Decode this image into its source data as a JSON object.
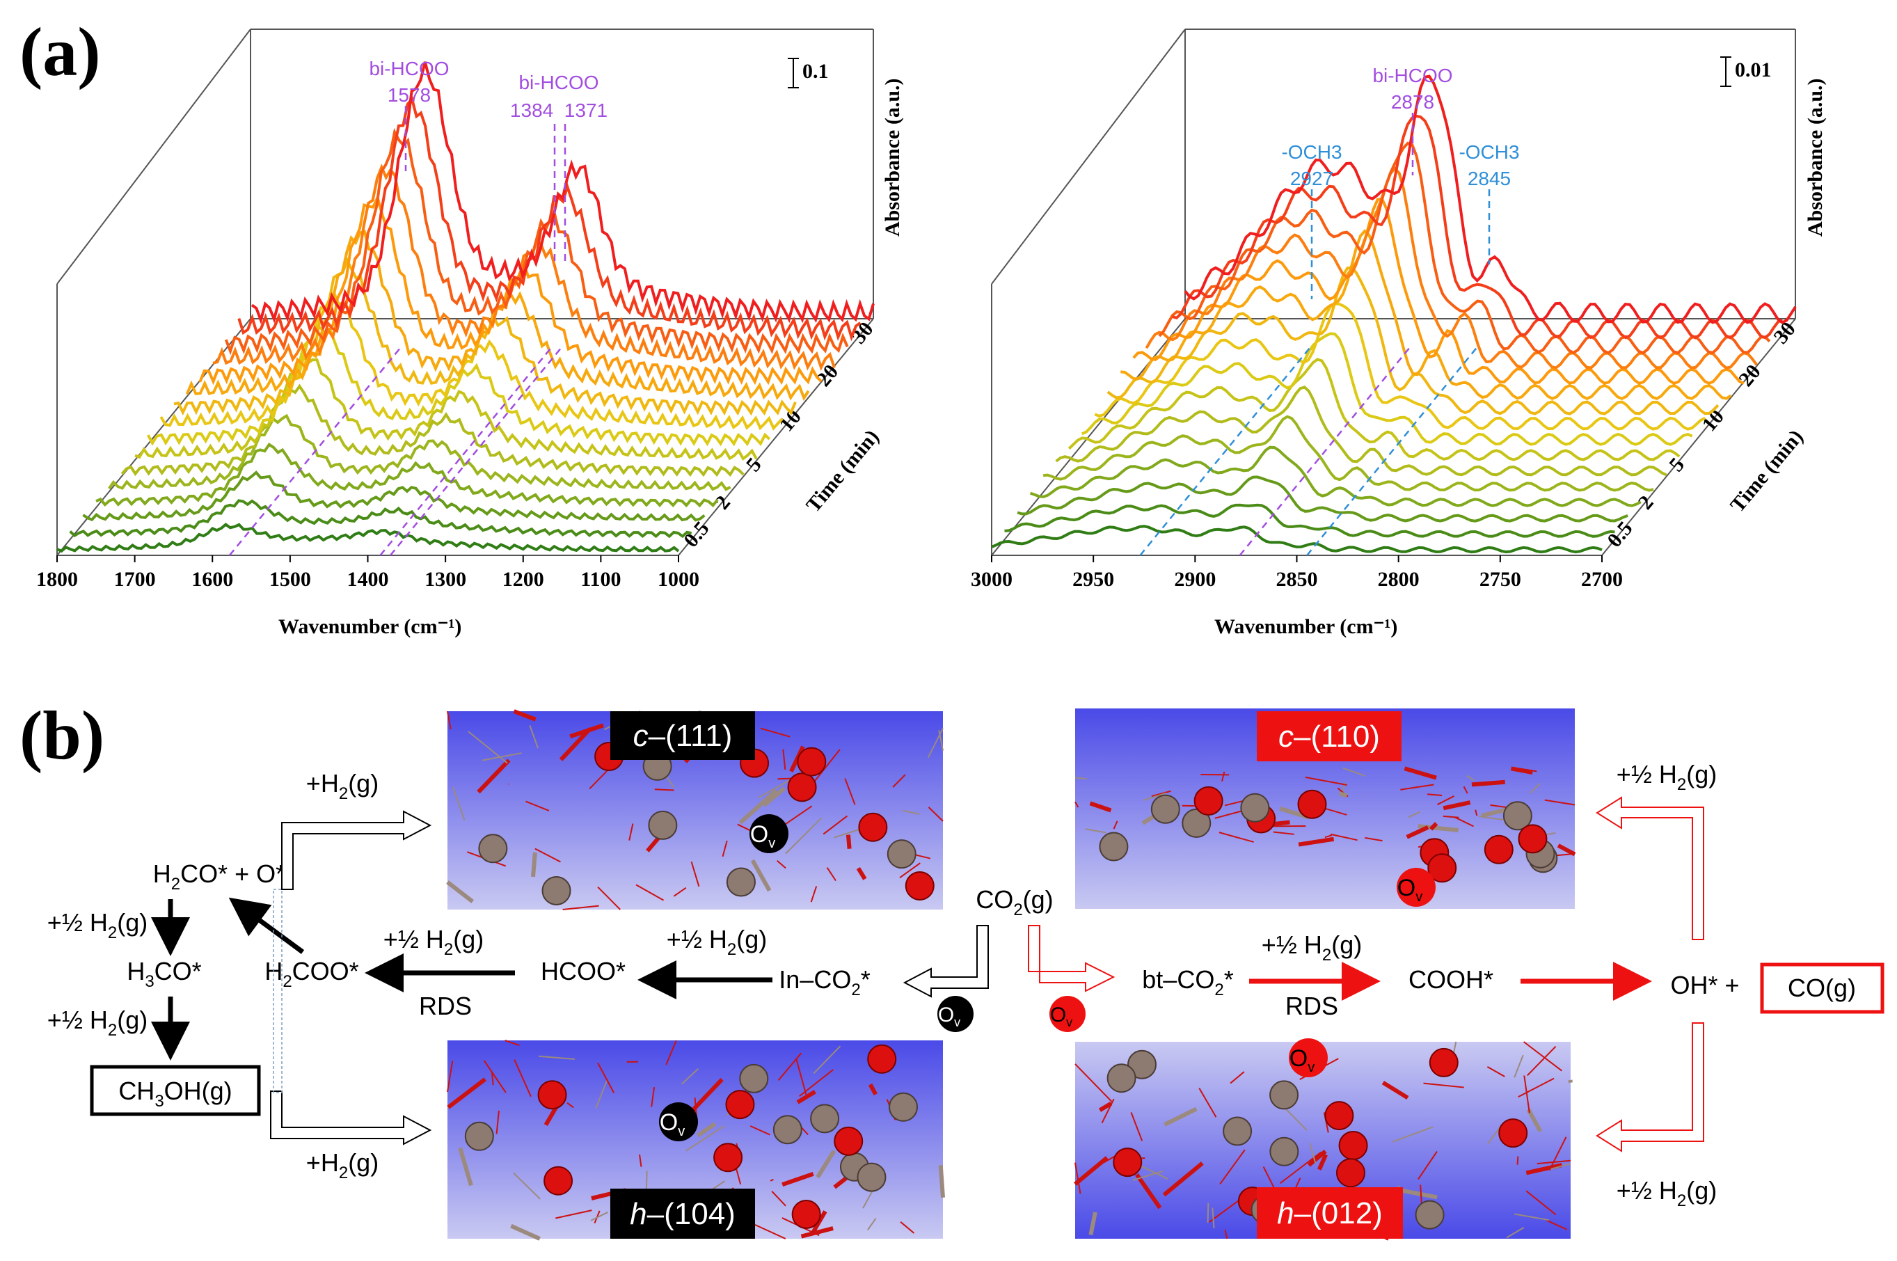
{
  "panel_a": {
    "label": "(a)",
    "chart_data": [
      {
        "type": "line",
        "title": "",
        "xlabel": "Wavenumber (cm⁻¹)",
        "ylabel": "Absorbance (a.u.)",
        "zlabel": "Time (min)",
        "xlim": [
          1800,
          1000
        ],
        "x_ticks": [
          "1800",
          "1700",
          "1600",
          "1500",
          "1400",
          "1300",
          "1200",
          "1100",
          "1000"
        ],
        "time_ticks": [
          "0.5",
          "2",
          "5",
          "10",
          "20",
          "30"
        ],
        "scale_bar": "0.1",
        "series_count": 16,
        "peaks": [
          {
            "name": "bi-HCOO",
            "position": "1578",
            "x": 1578,
            "height": 0.55,
            "width": 45
          },
          {
            "name": "bi-HCOO",
            "position": "1384  1371",
            "x": 1380,
            "height": 0.28,
            "width": 40
          }
        ],
        "annotations": [
          {
            "name": "bi-HCOO",
            "value": "1578"
          },
          {
            "name": "bi-HCOO",
            "value": "1384  1371"
          }
        ]
      },
      {
        "type": "line",
        "title": "",
        "xlabel": "Wavenumber (cm⁻¹)",
        "ylabel": "Absorbance (a.u.)",
        "zlabel": "Time (min)",
        "xlim": [
          3000,
          2700
        ],
        "x_ticks": [
          "3000",
          "2950",
          "2900",
          "2850",
          "2800",
          "2750",
          "2700"
        ],
        "time_ticks": [
          "0.5",
          "2",
          "5",
          "10",
          "20",
          "30"
        ],
        "scale_bar": "0.01",
        "series_count": 16,
        "peaks": [
          {
            "name": "-OCH3",
            "position": "2927",
            "x": 2927,
            "height": 0.25,
            "width": 40
          },
          {
            "name": "bi-HCOO",
            "position": "2878",
            "x": 2878,
            "height": 0.5,
            "width": 14
          },
          {
            "name": "-OCH3",
            "position": "2845",
            "x": 2845,
            "height": 0.12,
            "width": 8
          }
        ],
        "annotations": [
          {
            "name": "-OCH3",
            "value": "2927"
          },
          {
            "name": "bi-HCOO",
            "value": "2878"
          },
          {
            "name": "-OCH3",
            "value": "2845"
          }
        ]
      }
    ]
  },
  "panel_b": {
    "label": "(b)",
    "facets": {
      "c111": {
        "italic": "c",
        "rest": "–(111)"
      },
      "h104": {
        "italic": "h",
        "rest": "–(104)"
      },
      "c110": {
        "italic": "c",
        "rest": "–(110)"
      },
      "h012": {
        "italic": "h",
        "rest": "–(012)"
      }
    },
    "vacancy": {
      "main": "O",
      "sub": "v"
    },
    "species": {
      "co2": {
        "a": "CO",
        "sub": "2",
        "b": "(g)"
      },
      "in_co2": {
        "a": "In–CO",
        "sub": "2",
        "b": "*"
      },
      "hcoo": "HCOO*",
      "h2coo": {
        "a": "H",
        "sub": "2",
        "b": "COO*"
      },
      "h2co_o": {
        "a": "H",
        "sub": "2",
        "b": "CO* + O*"
      },
      "h3co": {
        "a": "H",
        "sub": "3",
        "b": "CO*"
      },
      "ch3oh": {
        "a": "CH",
        "sub": "3",
        "b": "OH(g)"
      },
      "bt_co2": {
        "a": "bt–CO",
        "sub": "2",
        "b": "*"
      },
      "cooh": "COOH*",
      "oh_plus": "OH* +",
      "co_g": "CO(g)"
    },
    "steps": {
      "half_h2": {
        "a": "+½ H",
        "sub": "2",
        "b": "(g)"
      },
      "h2": {
        "a": "+H",
        "sub": "2",
        "b": "(g)"
      },
      "rds": "RDS"
    },
    "colors": {
      "red": "#ee1111",
      "black": "#000000",
      "purple": "#a24de0",
      "blue": "#2f8fd8"
    }
  }
}
